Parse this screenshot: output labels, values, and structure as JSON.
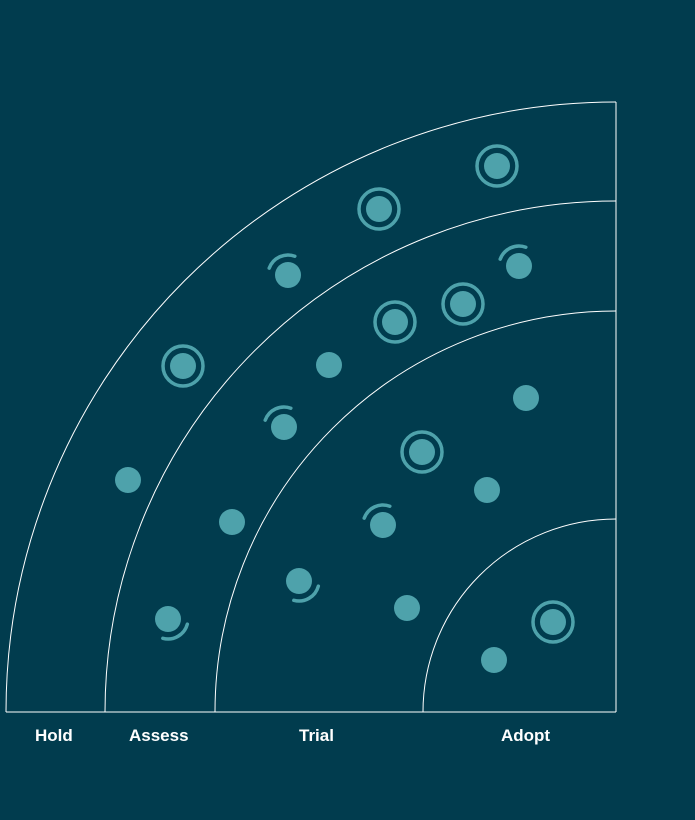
{
  "radar": {
    "rings": [
      "Hold",
      "Assess",
      "Trial",
      "Adopt"
    ],
    "colors": {
      "background": "#013c4e",
      "line": "#ffffff",
      "blip": "#4ea2ab"
    },
    "blip_styles": [
      "dot",
      "ring",
      "arc"
    ]
  }
}
